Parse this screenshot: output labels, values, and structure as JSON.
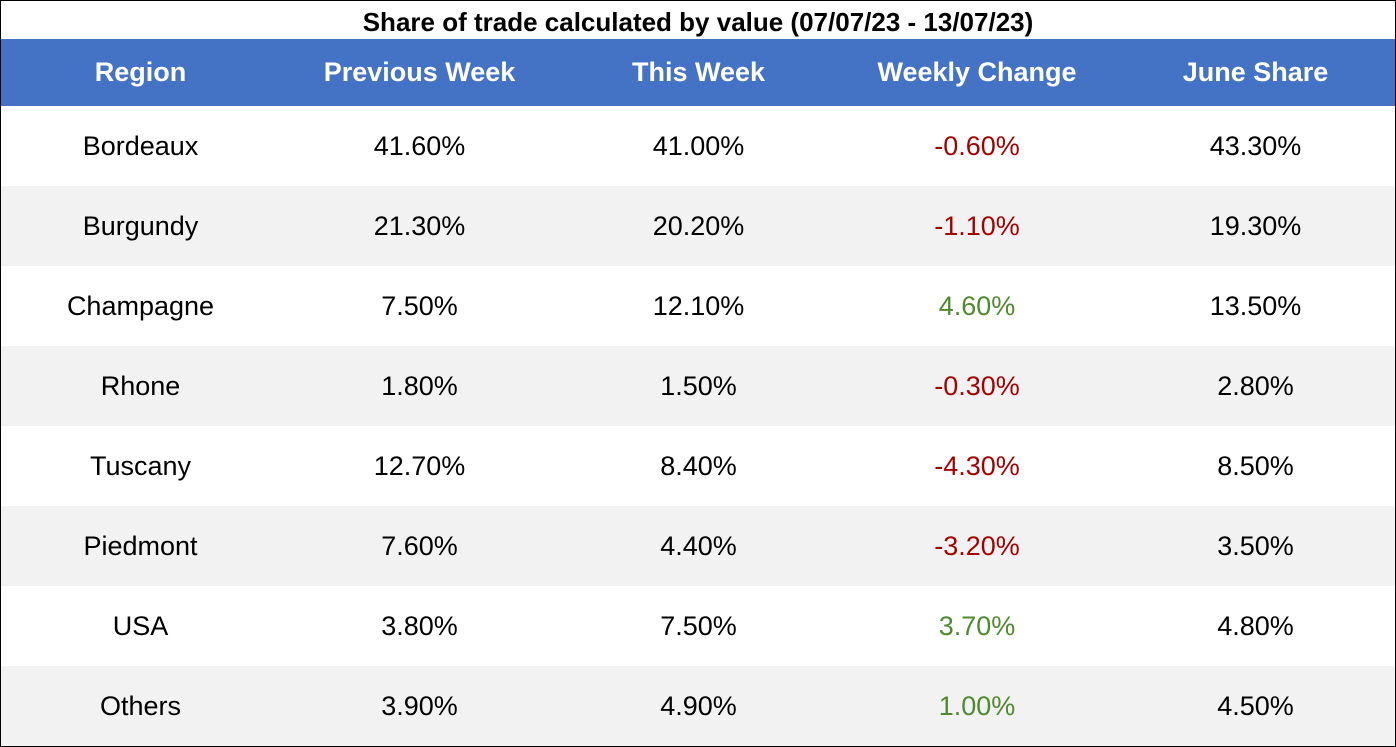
{
  "chart_data": {
    "type": "table",
    "title": "Share of trade calculated by value (07/07/23 - 13/07/23)",
    "columns": [
      "Region",
      "Previous Week",
      "This Week",
      "Weekly Change",
      "June Share"
    ],
    "rows": [
      {
        "region": "Bordeaux",
        "previous_week": "41.60%",
        "this_week": "41.00%",
        "weekly_change": "-0.60%",
        "june_share": "43.30%"
      },
      {
        "region": "Burgundy",
        "previous_week": "21.30%",
        "this_week": "20.20%",
        "weekly_change": "-1.10%",
        "june_share": "19.30%"
      },
      {
        "region": "Champagne",
        "previous_week": "7.50%",
        "this_week": "12.10%",
        "weekly_change": "4.60%",
        "june_share": "13.50%"
      },
      {
        "region": "Rhone",
        "previous_week": "1.80%",
        "this_week": "1.50%",
        "weekly_change": "-0.30%",
        "june_share": "2.80%"
      },
      {
        "region": "Tuscany",
        "previous_week": "12.70%",
        "this_week": "8.40%",
        "weekly_change": "-4.30%",
        "june_share": "8.50%"
      },
      {
        "region": "Piedmont",
        "previous_week": "7.60%",
        "this_week": "4.40%",
        "weekly_change": "-3.20%",
        "june_share": "3.50%"
      },
      {
        "region": "USA",
        "previous_week": "3.80%",
        "this_week": "7.50%",
        "weekly_change": "3.70%",
        "june_share": "4.80%"
      },
      {
        "region": "Others",
        "previous_week": "3.90%",
        "this_week": "4.90%",
        "weekly_change": "1.00%",
        "june_share": "4.50%"
      }
    ],
    "colors": {
      "header_bg": "#4472C4",
      "header_text": "#ffffff",
      "row_alt_bg": "#f2f2f2",
      "negative": "#a50000",
      "positive": "#4f8a2f"
    }
  }
}
